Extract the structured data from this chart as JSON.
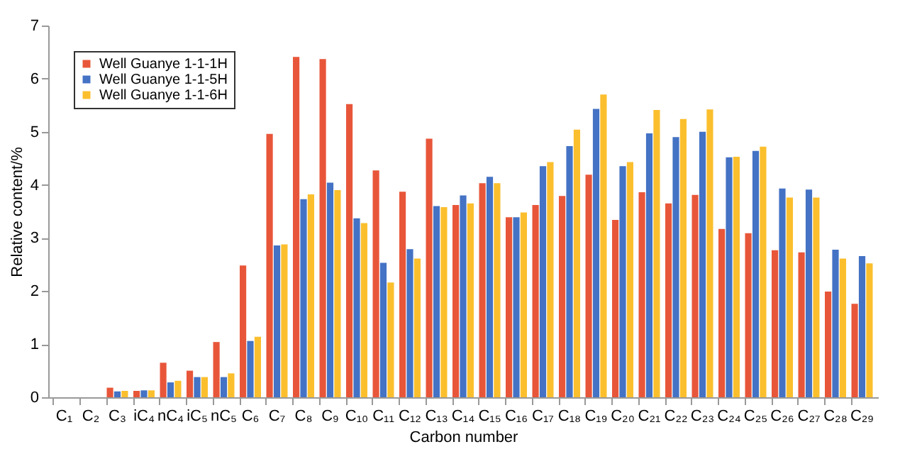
{
  "chart_data": {
    "type": "bar",
    "xlabel": "Carbon number",
    "ylabel": "Relative content/%",
    "categories": [
      "C₁",
      "C₂",
      "C₃",
      "iC₄",
      "nC₄",
      "iC₅",
      "nC₅",
      "C₆",
      "C₇",
      "C₈",
      "C₉",
      "C₁₀",
      "C₁₁",
      "C₁₂",
      "C₁₃",
      "C₁₄",
      "C₁₅",
      "C₁₆",
      "C₁₇",
      "C₁₈",
      "C₁₉",
      "C₂₀",
      "C₂₁",
      "C₂₂",
      "C₂₃",
      "C₂₄",
      "C₂₅",
      "C₂₆",
      "C₂₇",
      "C₂₈",
      "C₂₉"
    ],
    "series": [
      {
        "name": "Well Guanye 1-1-1H",
        "color": "#e8563a",
        "values": [
          0,
          0,
          0.18,
          0.12,
          0.65,
          0.5,
          1.04,
          2.48,
          4.96,
          6.41,
          6.37,
          5.52,
          4.27,
          3.87,
          4.87,
          3.62,
          4.03,
          3.39,
          3.62,
          3.79,
          4.19,
          3.34,
          3.86,
          3.65,
          3.81,
          3.17,
          3.09,
          2.77,
          2.73,
          1.99,
          1.76
        ]
      },
      {
        "name": "Well Guanye 1-1-5H",
        "color": "#4472c4",
        "values": [
          0,
          0,
          0.11,
          0.13,
          0.28,
          0.38,
          0.38,
          1.06,
          2.86,
          3.73,
          4.04,
          3.37,
          2.53,
          2.79,
          3.6,
          3.8,
          4.15,
          3.39,
          4.35,
          4.73,
          5.43,
          4.35,
          4.97,
          4.9,
          5.0,
          4.52,
          4.64,
          3.93,
          3.91,
          2.78,
          2.66
        ]
      },
      {
        "name": "Well Guanye 1-1-6H",
        "color": "#fbbf2e",
        "values": [
          0,
          0,
          0.12,
          0.13,
          0.31,
          0.38,
          0.45,
          1.14,
          2.88,
          3.82,
          3.9,
          3.28,
          2.16,
          2.61,
          3.58,
          3.65,
          4.03,
          3.48,
          4.43,
          5.04,
          5.7,
          4.43,
          5.41,
          5.24,
          5.42,
          4.53,
          4.72,
          3.76,
          3.76,
          2.61,
          2.52
        ]
      }
    ],
    "ylim": [
      0,
      7
    ],
    "yticks": [
      0,
      1,
      2,
      3,
      4,
      5,
      6,
      7
    ],
    "grid": false,
    "legend": "top left"
  }
}
